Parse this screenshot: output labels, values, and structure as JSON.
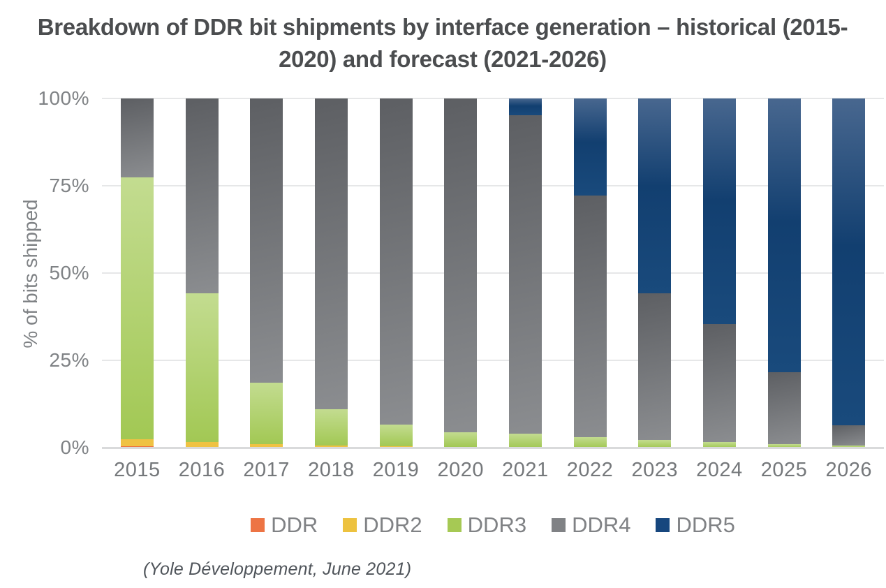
{
  "title": "Breakdown of DDR bit shipments by interface generation – historical (2015-2020) and forecast (2021-2026)",
  "source": "(Yole Développement, June 2021)",
  "y_axis": {
    "label": "% of bits shipped",
    "ticks": [
      "100%",
      "75%",
      "50%",
      "25%",
      "0%"
    ]
  },
  "colors": {
    "DDR": "#ed7444",
    "DDR2": "#edc23f",
    "DDR3": "#a6c954",
    "DDR4": "#808285",
    "DDR5": "#17477e",
    "title_text": "#4b4d4f",
    "axis_text": "#7f8285",
    "gridline": "#e6e7e8"
  },
  "chart_data": {
    "type": "bar",
    "stacked": true,
    "title": "Breakdown of DDR bit shipments by interface generation – historical (2015-2020) and forecast (2021-2026)",
    "xlabel": "",
    "ylabel": "% of bits shipped",
    "ylim": [
      0,
      100
    ],
    "y_tick_format": "percent",
    "grid": true,
    "legend_position": "bottom",
    "categories": [
      "2015",
      "2016",
      "2017",
      "2018",
      "2019",
      "2020",
      "2021",
      "2022",
      "2023",
      "2024",
      "2025",
      "2026"
    ],
    "series": [
      {
        "name": "DDR",
        "color": "#ed7444",
        "values": [
          0.5,
          0.3,
          0.2,
          0,
          0,
          0,
          0,
          0,
          0,
          0,
          0,
          0
        ]
      },
      {
        "name": "DDR2",
        "color": "#edc23f",
        "values": [
          2.0,
          1.4,
          0.9,
          0.7,
          0.4,
          0.2,
          0,
          0,
          0,
          0,
          0,
          0
        ]
      },
      {
        "name": "DDR3",
        "color": "#a6c954",
        "values": [
          75.0,
          42.6,
          17.6,
          10.3,
          6.3,
          4.3,
          4.0,
          3.0,
          2.2,
          1.6,
          1.1,
          0.6
        ]
      },
      {
        "name": "DDR4",
        "color": "#808285",
        "values": [
          22.5,
          55.7,
          81.3,
          89.0,
          93.3,
          95.5,
          91.2,
          69.2,
          42.1,
          33.8,
          20.6,
          5.9
        ]
      },
      {
        "name": "DDR5",
        "color": "#17477e",
        "values": [
          0,
          0,
          0,
          0,
          0,
          0,
          4.8,
          27.8,
          55.7,
          64.6,
          78.3,
          93.5
        ]
      }
    ]
  }
}
